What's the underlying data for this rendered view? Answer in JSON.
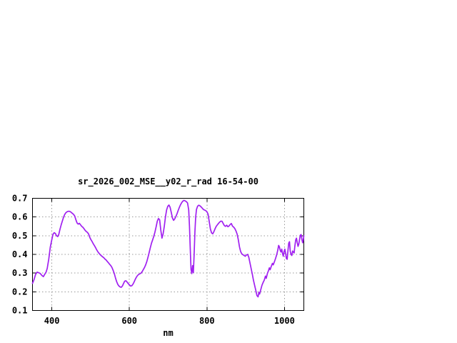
{
  "window": {
    "background_color": "#ffffff"
  },
  "chart_data": {
    "type": "line",
    "title": "sr_2026_002_MSE__y02_r_rad 16-54-00",
    "xlabel": "nm",
    "ylabel": "",
    "xlim": [
      350,
      1050
    ],
    "ylim": [
      0.1,
      0.7
    ],
    "x_ticks": [
      {
        "value": 400,
        "label": "400"
      },
      {
        "value": 600,
        "label": "600"
      },
      {
        "value": 800,
        "label": "800"
      },
      {
        "value": 1000,
        "label": "1000"
      }
    ],
    "y_ticks": [
      {
        "value": 0.1,
        "label": "0.1"
      },
      {
        "value": 0.2,
        "label": "0.2"
      },
      {
        "value": 0.3,
        "label": "0.3"
      },
      {
        "value": 0.4,
        "label": "0.4"
      },
      {
        "value": 0.5,
        "label": "0.5"
      },
      {
        "value": 0.6,
        "label": "0.6"
      },
      {
        "value": 0.7,
        "label": "0.7"
      }
    ],
    "grid": true,
    "grid_style": "dotted",
    "legend_position": "none",
    "colors": {
      "line": "#A020F0",
      "grid": "#999999",
      "axis": "#000000",
      "text": "#000000",
      "background": "#ffffff"
    },
    "series": [
      {
        "name": "sr_2026_002_MSE__y02_r_rad",
        "points": [
          [
            350,
            0.245
          ],
          [
            354,
            0.265
          ],
          [
            358,
            0.293
          ],
          [
            362,
            0.305
          ],
          [
            366,
            0.302
          ],
          [
            370,
            0.298
          ],
          [
            374,
            0.288
          ],
          [
            378,
            0.281
          ],
          [
            382,
            0.295
          ],
          [
            385,
            0.305
          ],
          [
            388,
            0.325
          ],
          [
            392,
            0.375
          ],
          [
            396,
            0.44
          ],
          [
            400,
            0.48
          ],
          [
            403,
            0.508
          ],
          [
            406,
            0.516
          ],
          [
            409,
            0.512
          ],
          [
            412,
            0.5
          ],
          [
            415,
            0.495
          ],
          [
            418,
            0.508
          ],
          [
            421,
            0.535
          ],
          [
            424,
            0.558
          ],
          [
            427,
            0.578
          ],
          [
            430,
            0.598
          ],
          [
            433,
            0.613
          ],
          [
            436,
            0.623
          ],
          [
            440,
            0.629
          ],
          [
            444,
            0.631
          ],
          [
            448,
            0.628
          ],
          [
            452,
            0.621
          ],
          [
            456,
            0.614
          ],
          [
            459,
            0.605
          ],
          [
            462,
            0.585
          ],
          [
            465,
            0.568
          ],
          [
            468,
            0.562
          ],
          [
            471,
            0.566
          ],
          [
            474,
            0.558
          ],
          [
            477,
            0.55
          ],
          [
            480,
            0.545
          ],
          [
            483,
            0.537
          ],
          [
            486,
            0.528
          ],
          [
            489,
            0.522
          ],
          [
            492,
            0.517
          ],
          [
            495,
            0.508
          ],
          [
            498,
            0.49
          ],
          [
            501,
            0.478
          ],
          [
            504,
            0.468
          ],
          [
            507,
            0.456
          ],
          [
            510,
            0.446
          ],
          [
            513,
            0.435
          ],
          [
            516,
            0.423
          ],
          [
            519,
            0.413
          ],
          [
            522,
            0.405
          ],
          [
            525,
            0.398
          ],
          [
            528,
            0.392
          ],
          [
            531,
            0.387
          ],
          [
            534,
            0.382
          ],
          [
            537,
            0.375
          ],
          [
            540,
            0.37
          ],
          [
            543,
            0.362
          ],
          [
            546,
            0.355
          ],
          [
            549,
            0.347
          ],
          [
            552,
            0.34
          ],
          [
            555,
            0.33
          ],
          [
            558,
            0.315
          ],
          [
            561,
            0.298
          ],
          [
            564,
            0.275
          ],
          [
            567,
            0.255
          ],
          [
            570,
            0.24
          ],
          [
            573,
            0.231
          ],
          [
            576,
            0.226
          ],
          [
            579,
            0.224
          ],
          [
            582,
            0.231
          ],
          [
            585,
            0.245
          ],
          [
            588,
            0.257
          ],
          [
            591,
            0.259
          ],
          [
            594,
            0.252
          ],
          [
            597,
            0.244
          ],
          [
            600,
            0.237
          ],
          [
            603,
            0.231
          ],
          [
            606,
            0.232
          ],
          [
            609,
            0.24
          ],
          [
            612,
            0.252
          ],
          [
            615,
            0.266
          ],
          [
            618,
            0.278
          ],
          [
            621,
            0.287
          ],
          [
            624,
            0.293
          ],
          [
            627,
            0.296
          ],
          [
            630,
            0.3
          ],
          [
            633,
            0.308
          ],
          [
            636,
            0.319
          ],
          [
            639,
            0.33
          ],
          [
            642,
            0.344
          ],
          [
            645,
            0.362
          ],
          [
            648,
            0.385
          ],
          [
            651,
            0.41
          ],
          [
            654,
            0.436
          ],
          [
            657,
            0.46
          ],
          [
            660,
            0.478
          ],
          [
            663,
            0.497
          ],
          [
            666,
            0.52
          ],
          [
            669,
            0.548
          ],
          [
            672,
            0.578
          ],
          [
            675,
            0.592
          ],
          [
            678,
            0.585
          ],
          [
            681,
            0.53
          ],
          [
            684,
            0.487
          ],
          [
            687,
            0.51
          ],
          [
            690,
            0.55
          ],
          [
            693,
            0.6
          ],
          [
            696,
            0.638
          ],
          [
            699,
            0.657
          ],
          [
            702,
            0.664
          ],
          [
            705,
            0.652
          ],
          [
            708,
            0.625
          ],
          [
            711,
            0.595
          ],
          [
            714,
            0.582
          ],
          [
            717,
            0.59
          ],
          [
            720,
            0.603
          ],
          [
            723,
            0.618
          ],
          [
            726,
            0.636
          ],
          [
            729,
            0.652
          ],
          [
            732,
            0.666
          ],
          [
            735,
            0.677
          ],
          [
            738,
            0.685
          ],
          [
            741,
            0.689
          ],
          [
            744,
            0.686
          ],
          [
            747,
            0.682
          ],
          [
            750,
            0.675
          ],
          [
            753,
            0.638
          ],
          [
            755,
            0.55
          ],
          [
            757,
            0.43
          ],
          [
            759,
            0.32
          ],
          [
            761,
            0.297
          ],
          [
            763,
            0.34
          ],
          [
            765,
            0.303
          ],
          [
            767,
            0.4
          ],
          [
            769,
            0.52
          ],
          [
            771,
            0.6
          ],
          [
            773,
            0.64
          ],
          [
            776,
            0.658
          ],
          [
            779,
            0.663
          ],
          [
            782,
            0.66
          ],
          [
            785,
            0.654
          ],
          [
            788,
            0.647
          ],
          [
            791,
            0.64
          ],
          [
            794,
            0.637
          ],
          [
            797,
            0.634
          ],
          [
            800,
            0.628
          ],
          [
            803,
            0.615
          ],
          [
            806,
            0.575
          ],
          [
            809,
            0.535
          ],
          [
            812,
            0.515
          ],
          [
            815,
            0.51
          ],
          [
            818,
            0.522
          ],
          [
            821,
            0.537
          ],
          [
            824,
            0.55
          ],
          [
            827,
            0.558
          ],
          [
            830,
            0.566
          ],
          [
            833,
            0.573
          ],
          [
            836,
            0.578
          ],
          [
            839,
            0.577
          ],
          [
            842,
            0.565
          ],
          [
            845,
            0.554
          ],
          [
            848,
            0.55
          ],
          [
            851,
            0.556
          ],
          [
            854,
            0.548
          ],
          [
            857,
            0.552
          ],
          [
            860,
            0.56
          ],
          [
            863,
            0.565
          ],
          [
            866,
            0.551
          ],
          [
            869,
            0.546
          ],
          [
            872,
            0.538
          ],
          [
            875,
            0.525
          ],
          [
            878,
            0.508
          ],
          [
            881,
            0.478
          ],
          [
            884,
            0.44
          ],
          [
            887,
            0.415
          ],
          [
            890,
            0.403
          ],
          [
            893,
            0.398
          ],
          [
            896,
            0.394
          ],
          [
            899,
            0.39
          ],
          [
            902,
            0.397
          ],
          [
            905,
            0.4
          ],
          [
            908,
            0.385
          ],
          [
            911,
            0.355
          ],
          [
            914,
            0.325
          ],
          [
            917,
            0.295
          ],
          [
            920,
            0.262
          ],
          [
            923,
            0.235
          ],
          [
            926,
            0.208
          ],
          [
            929,
            0.18
          ],
          [
            932,
            0.173
          ],
          [
            934,
            0.197
          ],
          [
            936,
            0.188
          ],
          [
            939,
            0.212
          ],
          [
            942,
            0.235
          ],
          [
            945,
            0.25
          ],
          [
            948,
            0.263
          ],
          [
            951,
            0.284
          ],
          [
            953,
            0.272
          ],
          [
            956,
            0.298
          ],
          [
            959,
            0.314
          ],
          [
            961,
            0.328
          ],
          [
            963,
            0.318
          ],
          [
            966,
            0.336
          ],
          [
            969,
            0.352
          ],
          [
            971,
            0.344
          ],
          [
            974,
            0.36
          ],
          [
            977,
            0.378
          ],
          [
            980,
            0.398
          ],
          [
            983,
            0.425
          ],
          [
            985,
            0.448
          ],
          [
            987,
            0.44
          ],
          [
            989,
            0.422
          ],
          [
            991,
            0.413
          ],
          [
            993,
            0.428
          ],
          [
            995,
            0.405
          ],
          [
            997,
            0.39
          ],
          [
            999,
            0.415
          ],
          [
            1001,
            0.428
          ],
          [
            1003,
            0.405
          ],
          [
            1005,
            0.378
          ],
          [
            1007,
            0.374
          ],
          [
            1009,
            0.42
          ],
          [
            1011,
            0.46
          ],
          [
            1013,
            0.468
          ],
          [
            1015,
            0.415
          ],
          [
            1017,
            0.4
          ],
          [
            1019,
            0.394
          ],
          [
            1021,
            0.418
          ],
          [
            1023,
            0.412
          ],
          [
            1025,
            0.408
          ],
          [
            1027,
            0.447
          ],
          [
            1029,
            0.477
          ],
          [
            1031,
            0.487
          ],
          [
            1033,
            0.463
          ],
          [
            1035,
            0.443
          ],
          [
            1037,
            0.455
          ],
          [
            1039,
            0.48
          ],
          [
            1041,
            0.503
          ],
          [
            1043,
            0.506
          ],
          [
            1045,
            0.48
          ],
          [
            1047,
            0.462
          ],
          [
            1049,
            0.483
          ],
          [
            1050,
            0.5
          ]
        ]
      }
    ]
  }
}
